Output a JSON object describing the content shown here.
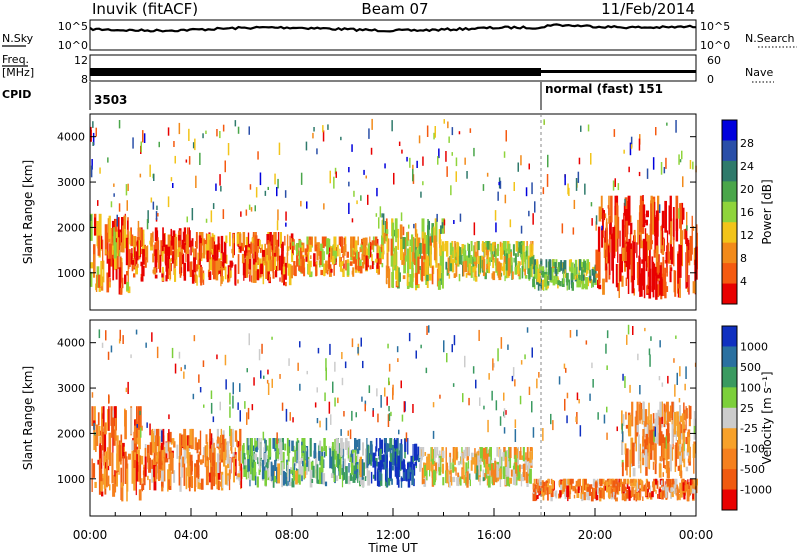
{
  "header": {
    "site": "Inuvik (fitACF)",
    "beam": "Beam 07",
    "date": "11/Feb/2014"
  },
  "status_panel": {
    "nsky_label": "N.Sky",
    "nsky_ticks": [
      "10^5",
      "10^0"
    ],
    "nsearch_label": "N.Search",
    "nsearch_ticks": [
      "10^5",
      "10^0"
    ],
    "freq_label_1": "Freq.",
    "freq_label_2": "[MHz]",
    "freq_ticks": [
      "12",
      "8"
    ],
    "nave_label": "Nave",
    "nave_ticks": [
      "60",
      "0"
    ],
    "cpid_label": "CPID",
    "cpid_1": "3503",
    "cpid_2": "normal (fast) 151"
  },
  "chart_data": [
    {
      "type": "heatmap",
      "name": "power",
      "ylabel": "Slant Range [km]",
      "yticks": [
        "4000",
        "3000",
        "2000",
        "1000"
      ],
      "ylim": [
        180,
        4500
      ],
      "colorbar_label": "Power [dB]",
      "colorbar_ticks": [
        "28",
        "24",
        "20",
        "16",
        "12",
        "8",
        "4"
      ],
      "colors": [
        "#0000dd",
        "#2a4fa8",
        "#2f7a6b",
        "#4aa64a",
        "#8fd43b",
        "#f2c41a",
        "#f28a1a",
        "#f55a10",
        "#e80000"
      ],
      "bands": [
        {
          "t0": 0.0,
          "t1": 1.5,
          "r0": 500,
          "r1": 2300,
          "level": 0.75
        },
        {
          "t0": 1.5,
          "t1": 4.0,
          "r0": 800,
          "r1": 2000,
          "level": 0.85
        },
        {
          "t0": 4.0,
          "t1": 8.0,
          "r0": 700,
          "r1": 1900,
          "level": 0.8
        },
        {
          "t0": 8.0,
          "t1": 11.5,
          "r0": 900,
          "r1": 1800,
          "level": 0.7
        },
        {
          "t0": 11.5,
          "t1": 14.0,
          "r0": 600,
          "r1": 2200,
          "level": 0.6
        },
        {
          "t0": 14.0,
          "t1": 17.5,
          "r0": 800,
          "r1": 1700,
          "level": 0.55
        },
        {
          "t0": 17.5,
          "t1": 20.0,
          "r0": 600,
          "r1": 1300,
          "level": 0.45
        },
        {
          "t0": 20.0,
          "t1": 24.0,
          "r0": 400,
          "r1": 2700,
          "level": 0.9
        }
      ]
    },
    {
      "type": "heatmap",
      "name": "velocity",
      "ylabel": "Slant Range [km]",
      "yticks": [
        "4000",
        "3000",
        "2000",
        "1000"
      ],
      "ylim": [
        180,
        4500
      ],
      "colorbar_label": "Velocity [m s⁻¹]",
      "colorbar_ticks": [
        "1000",
        "500",
        "100",
        "25",
        "-25",
        "-100",
        "-500",
        "-1000"
      ],
      "colors": [
        "#1030c0",
        "#2a70a0",
        "#3a9a60",
        "#7ccf3a",
        "#cccccc",
        "#f7a12a",
        "#f5801e",
        "#f05a10",
        "#e80000"
      ],
      "bands": [
        {
          "t0": 0.0,
          "t1": 2.0,
          "r0": 500,
          "r1": 2600,
          "level": 0.75
        },
        {
          "t0": 2.0,
          "t1": 6.0,
          "r0": 700,
          "r1": 2100,
          "level": 0.7
        },
        {
          "t0": 6.0,
          "t1": 11.0,
          "r0": 800,
          "r1": 1900,
          "level": 0.35
        },
        {
          "t0": 11.0,
          "t1": 13.0,
          "r0": 800,
          "r1": 1900,
          "level": 0.1
        },
        {
          "t0": 13.0,
          "t1": 17.5,
          "r0": 800,
          "r1": 1700,
          "level": 0.55
        },
        {
          "t0": 17.5,
          "t1": 24.0,
          "r0": 500,
          "r1": 1000,
          "level": 0.72
        },
        {
          "t0": 21.0,
          "t1": 24.0,
          "r0": 1000,
          "r1": 2700,
          "level": 0.65
        }
      ]
    }
  ],
  "xaxis": {
    "label": "Time UT",
    "ticks": [
      "00:00",
      "04:00",
      "08:00",
      "12:00",
      "16:00",
      "20:00",
      "00:00"
    ]
  }
}
